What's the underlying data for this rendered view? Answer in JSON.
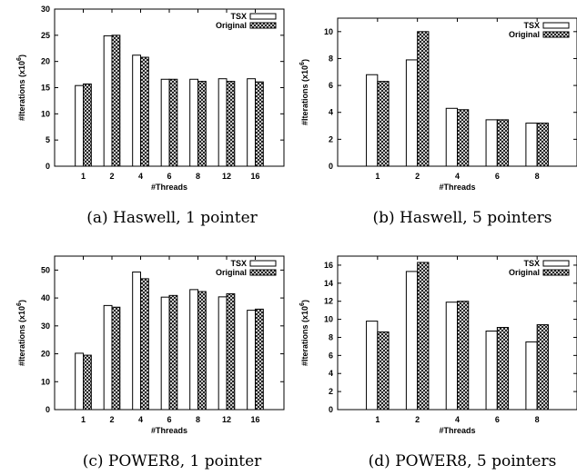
{
  "legend": {
    "tsx": "TSX",
    "original": "Original"
  },
  "chart_data": [
    {
      "type": "bar",
      "caption": "(a) Haswell, 1 pointer",
      "xlabel": "#Threads",
      "ylabel": "#Iterations (x10",
      "ylabel_exp": "6",
      "ylim": [
        0,
        30
      ],
      "yticks": [
        0,
        5,
        10,
        15,
        20,
        25,
        30
      ],
      "categories": [
        "1",
        "2",
        "4",
        "6",
        "8",
        "12",
        "16"
      ],
      "series": [
        {
          "name": "TSX",
          "values": [
            15.4,
            24.9,
            21.2,
            16.6,
            16.6,
            16.7,
            16.7
          ]
        },
        {
          "name": "Original",
          "values": [
            15.7,
            25.0,
            20.8,
            16.6,
            16.2,
            16.2,
            16.1
          ]
        }
      ],
      "legend_position": "top-right",
      "grid": false
    },
    {
      "type": "bar",
      "caption": "(b) Haswell, 5 pointers",
      "xlabel": "#Threads",
      "ylabel": "#Iterations (x10",
      "ylabel_exp": "6",
      "ylim": [
        0,
        11
      ],
      "yticks": [
        0,
        2,
        4,
        6,
        8,
        10
      ],
      "categories": [
        "1",
        "2",
        "4",
        "6",
        "8"
      ],
      "series": [
        {
          "name": "TSX",
          "values": [
            6.8,
            7.9,
            4.3,
            3.45,
            3.2
          ]
        },
        {
          "name": "Original",
          "values": [
            6.3,
            10.0,
            4.2,
            3.45,
            3.2
          ]
        }
      ],
      "legend_position": "top-right",
      "grid": false
    },
    {
      "type": "bar",
      "caption": "(c) POWER8, 1 pointer",
      "xlabel": "#Threads",
      "ylabel": "#Iterations (x10",
      "ylabel_exp": "6",
      "ylim": [
        0,
        55
      ],
      "yticks": [
        0,
        10,
        20,
        30,
        40,
        50
      ],
      "categories": [
        "1",
        "2",
        "4",
        "6",
        "8",
        "12",
        "16"
      ],
      "series": [
        {
          "name": "TSX",
          "values": [
            20.2,
            37.3,
            49.3,
            40.3,
            43.0,
            40.4,
            35.6
          ]
        },
        {
          "name": "Original",
          "values": [
            19.5,
            36.7,
            46.9,
            40.9,
            42.3,
            41.5,
            36.0
          ]
        }
      ],
      "legend_position": "top-right",
      "grid": false
    },
    {
      "type": "bar",
      "caption": "(d) POWER8, 5 pointers",
      "xlabel": "#Threads",
      "ylabel": "#Iterations (x10",
      "ylabel_exp": "6",
      "ylim": [
        0,
        17
      ],
      "yticks": [
        0,
        2,
        4,
        6,
        8,
        10,
        12,
        14,
        16
      ],
      "categories": [
        "1",
        "2",
        "4",
        "6",
        "8"
      ],
      "series": [
        {
          "name": "TSX",
          "values": [
            9.8,
            15.3,
            11.9,
            8.7,
            7.5
          ]
        },
        {
          "name": "Original",
          "values": [
            8.6,
            16.3,
            12.0,
            9.1,
            9.4
          ]
        }
      ],
      "legend_position": "top-right",
      "grid": false
    }
  ]
}
